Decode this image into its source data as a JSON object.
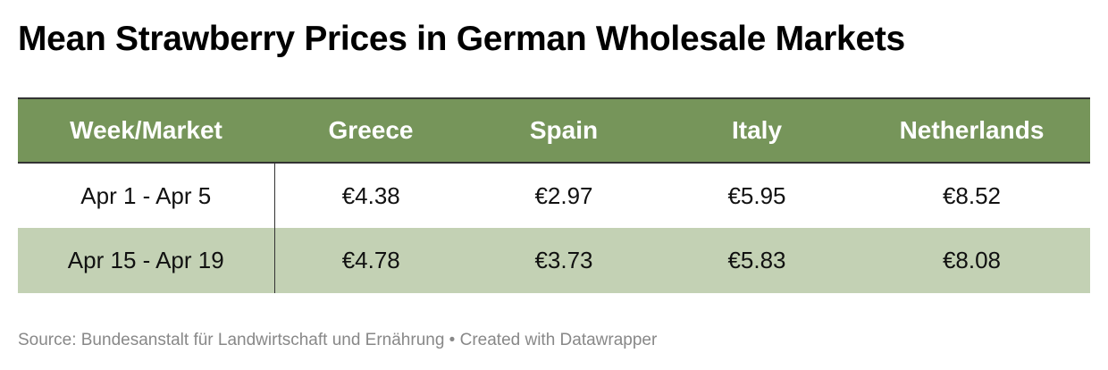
{
  "chart_data": {
    "type": "table",
    "title": "Mean Strawberry Prices in German Wholesale Markets",
    "columns": [
      "Week/Market",
      "Greece",
      "Spain",
      "Italy",
      "Netherlands"
    ],
    "rows": [
      [
        "Apr 1 - Apr 5",
        "€4.38",
        "€2.97",
        "€5.95",
        "€8.52"
      ],
      [
        "Apr 15 - Apr 19",
        "€4.78",
        "€3.73",
        "€5.83",
        "€8.08"
      ]
    ],
    "values": [
      {
        "week": "Apr 1 - Apr 5",
        "Greece": 4.38,
        "Spain": 2.97,
        "Italy": 5.95,
        "Netherlands": 8.52
      },
      {
        "week": "Apr 15 - Apr 19",
        "Greece": 4.78,
        "Spain": 3.73,
        "Italy": 5.83,
        "Netherlands": 8.08
      }
    ],
    "source": "Source: Bundesanstalt für Landwirtschaft und Ernährung • Created with Datawrapper"
  },
  "colors": {
    "header_bg": "#76955a",
    "header_text": "#ffffff",
    "row_odd_bg": "#ffffff",
    "row_even_bg": "#c3d1b4",
    "source_text": "#888888"
  }
}
